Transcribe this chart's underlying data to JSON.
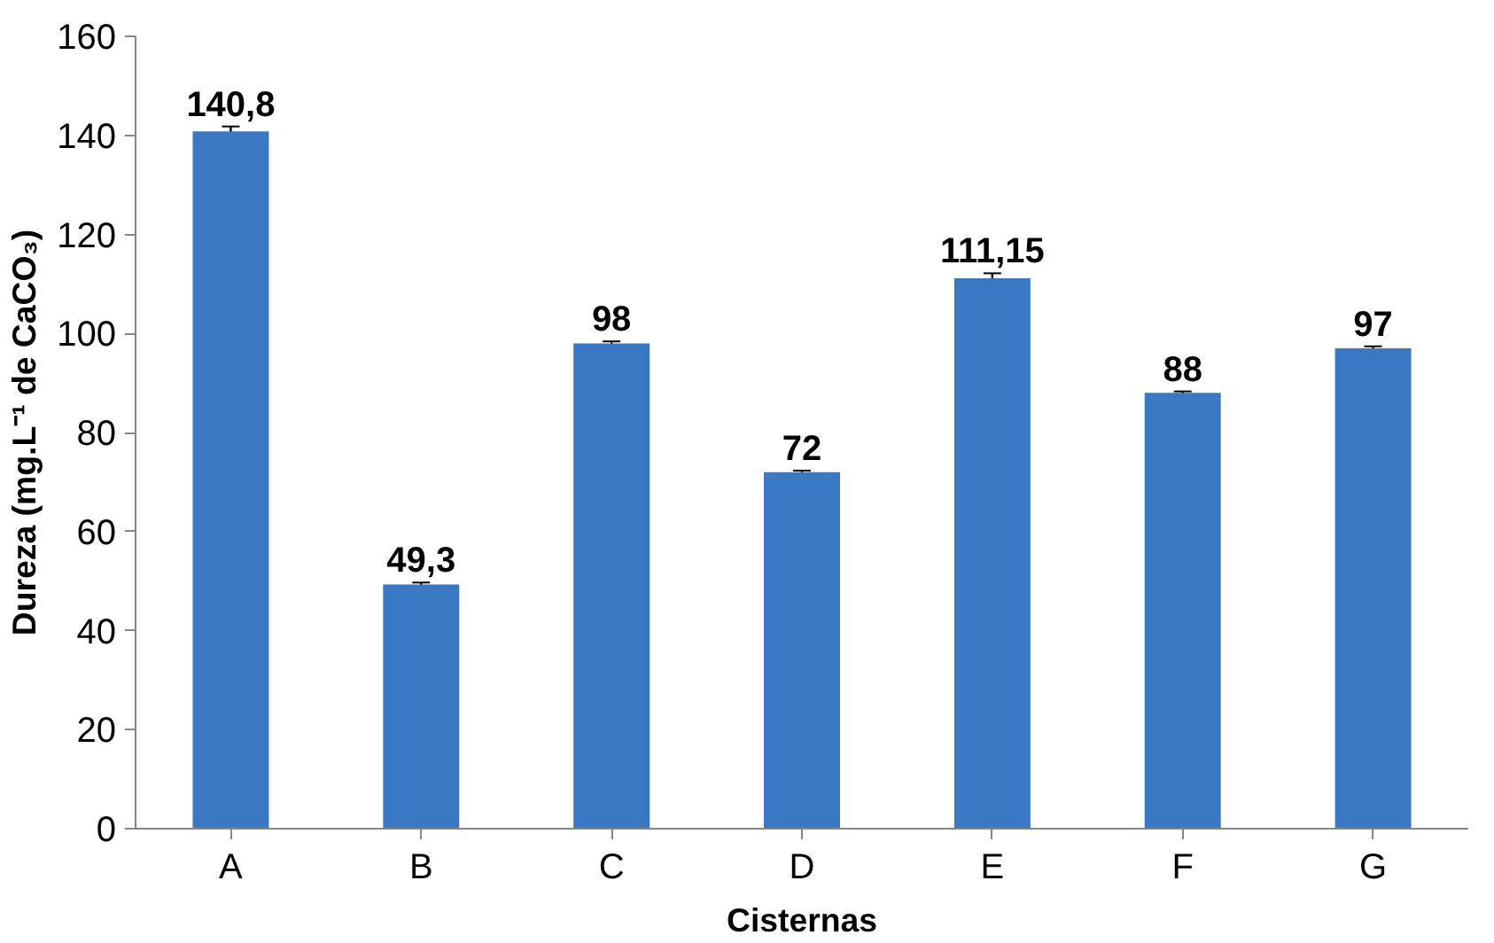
{
  "chart_data": {
    "type": "bar",
    "xlabel": "Cisternas",
    "ylabel": "Dureza (mg.L⁻¹ de CaCO₃)",
    "categories": [
      "A",
      "B",
      "C",
      "D",
      "E",
      "F",
      "G"
    ],
    "values": [
      140.8,
      49.3,
      98,
      72,
      111.15,
      88,
      97
    ],
    "value_labels": [
      "140,8",
      "49,3",
      "98",
      "72",
      "111,15",
      "88",
      "97"
    ],
    "errors": [
      1,
      0.4,
      0.4,
      0.3,
      1,
      0.3,
      0.4
    ],
    "color": "#3a78c4",
    "ylim": [
      0,
      160
    ],
    "yticks": [
      0,
      20,
      40,
      60,
      80,
      100,
      120,
      140,
      160
    ],
    "grid": false
  }
}
